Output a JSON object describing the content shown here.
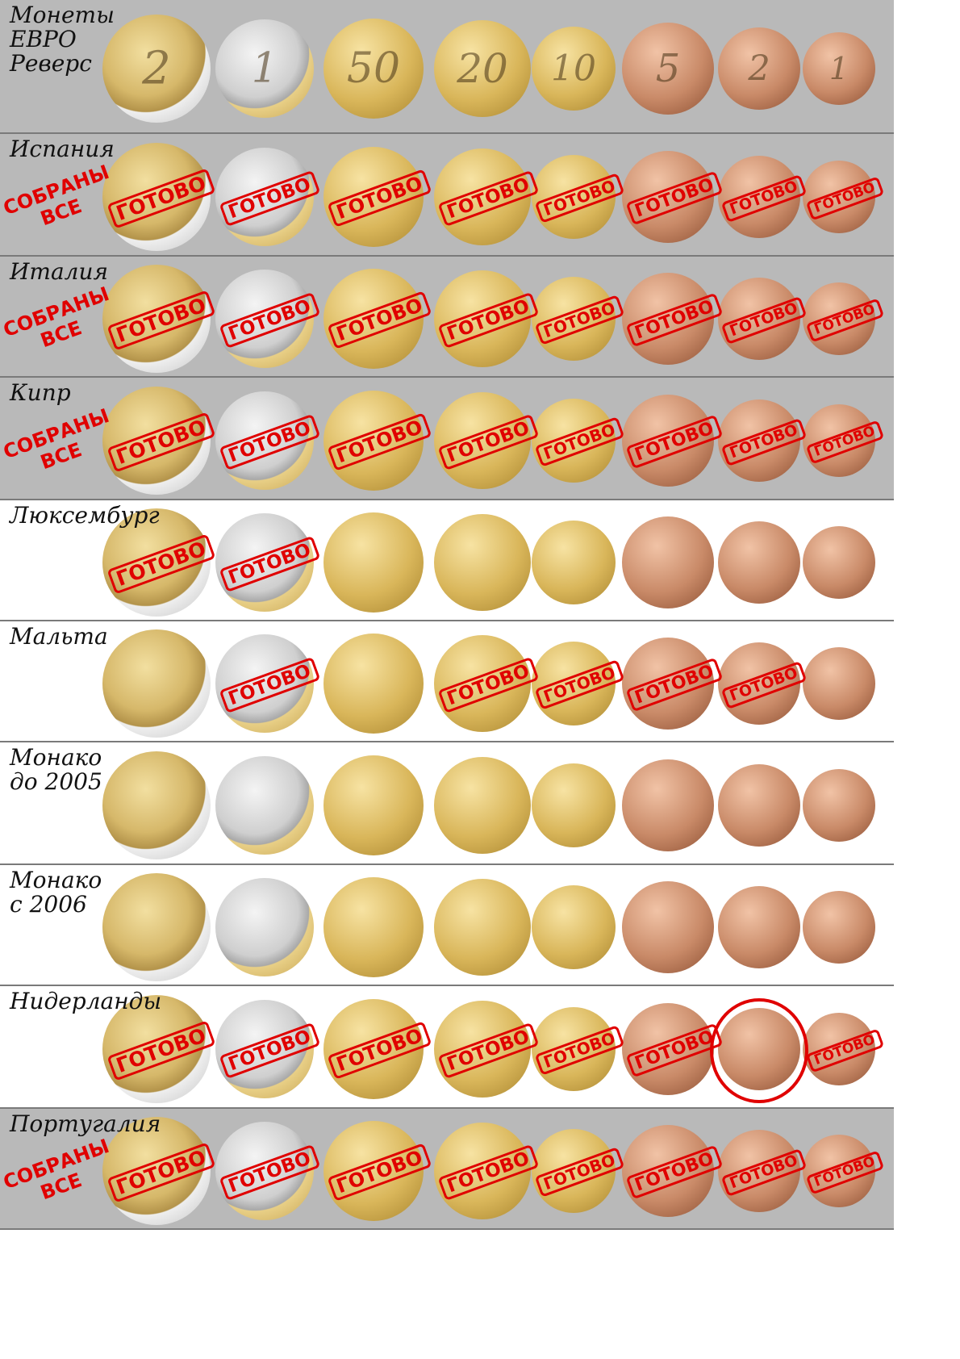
{
  "rows": [
    {
      "title": "Монеты\nЕВРО\n  Реверс",
      "stamped": [],
      "collected_label": ""
    },
    {
      "title": "Испания",
      "stamped": [
        0,
        1,
        2,
        3,
        4,
        5,
        6,
        7
      ],
      "collected_label": "СОБРАНЫ\nВСЕ"
    },
    {
      "title": "Италия",
      "stamped": [
        0,
        1,
        2,
        3,
        4,
        5,
        6,
        7
      ],
      "collected_label": "СОБРАНЫ\nВСЕ"
    },
    {
      "title": "Кипр",
      "stamped": [
        0,
        1,
        2,
        3,
        4,
        5,
        6,
        7
      ],
      "collected_label": "СОБРАНЫ\nВСЕ"
    },
    {
      "title": "Люксембург",
      "stamped": [
        0,
        1
      ],
      "collected_label": ""
    },
    {
      "title": "Мальта",
      "stamped": [
        1,
        3,
        4,
        5,
        6
      ],
      "collected_label": ""
    },
    {
      "title": "Монако\nдо 2005",
      "stamped": [],
      "collected_label": ""
    },
    {
      "title": "Монако\nс 2006",
      "stamped": [],
      "collected_label": ""
    },
    {
      "title": "Нидерланды",
      "stamped": [
        0,
        1,
        2,
        3,
        4,
        5,
        7
      ],
      "collected_label": "",
      "circled": [
        6
      ]
    },
    {
      "title": "Португалия",
      "stamped": [
        0,
        1,
        2,
        3,
        4,
        5,
        6,
        7
      ],
      "collected_label": "СОБРАНЫ\nВСЕ"
    }
  ],
  "denominations": [
    "2 EURO",
    "1 EURO",
    "50 EURO CENT",
    "20 EURO CENT",
    "10 EURO CENT",
    "5 EURO CENT",
    "2 EURO CENT",
    "1 EURO CENT"
  ],
  "reverse_numerals": [
    "2",
    "1",
    "50",
    "20",
    "10",
    "5",
    "2",
    "1"
  ],
  "stamp_label": "ГОТОВО",
  "colors": {
    "stamp": "#e00000",
    "gray_row": "#b9b9b9",
    "white_row": "#ffffff",
    "bimetal_outer": "#d9d9d9",
    "bimetal_inner_gold": "#d6b86a",
    "nordic_gold": "#d9b65a",
    "copper": "#c98a68"
  }
}
